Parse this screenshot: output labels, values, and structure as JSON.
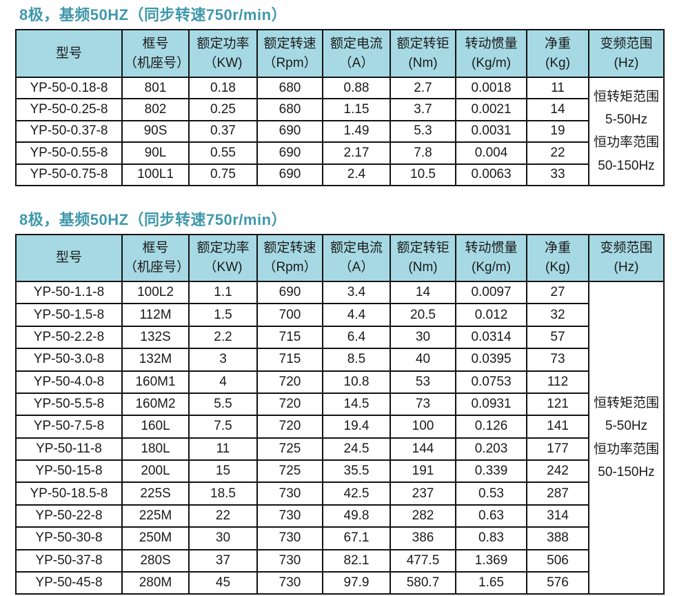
{
  "colors": {
    "title_text": "#3f98ab",
    "header_bg": "#a6d9e3",
    "border": "#111111",
    "cell_text": "#1a1a1a"
  },
  "tables": [
    {
      "title": "8极，基频50HZ（同步转速750r/min）",
      "header": [
        {
          "line1": "型号",
          "line2": ""
        },
        {
          "line1": "框号",
          "line2": "（机座号）"
        },
        {
          "line1": "额定功率",
          "line2": "（KW)"
        },
        {
          "line1": "额定转速",
          "line2": "（Rpm）"
        },
        {
          "line1": "额定电流",
          "line2": "（A）"
        },
        {
          "line1": "额定转钜",
          "line2": "(Nm)"
        },
        {
          "line1": "转动惯量",
          "line2": "(Kg/m)"
        },
        {
          "line1": "净重",
          "line2": "(Kg)"
        },
        {
          "line1": "变频范围",
          "line2": "(Hz)"
        }
      ],
      "frequency_range_lines": [
        "恒转矩范围",
        "5-50Hz",
        "恒功率范围",
        "50-150Hz"
      ],
      "rows": [
        [
          "YP-50-0.18-8",
          "801",
          "0.18",
          "680",
          "0.88",
          "2.7",
          "0.0018",
          "11"
        ],
        [
          "YP-50-0.25-8",
          "802",
          "0.25",
          "680",
          "1.15",
          "3.7",
          "0.0021",
          "14"
        ],
        [
          "YP-50-0.37-8",
          "90S",
          "0.37",
          "690",
          "1.49",
          "5.3",
          "0.0031",
          "19"
        ],
        [
          "YP-50-0.55-8",
          "90L",
          "0.55",
          "690",
          "2.17",
          "7.8",
          "0.004",
          "22"
        ],
        [
          "YP-50-0.75-8",
          "100L1",
          "0.75",
          "690",
          "2.4",
          "10.5",
          "0.0063",
          "33"
        ]
      ]
    },
    {
      "title": "8极，基频50HZ（同步转速750r/min）",
      "header": [
        {
          "line1": "型号",
          "line2": ""
        },
        {
          "line1": "框号",
          "line2": "（机座号）"
        },
        {
          "line1": "额定功率",
          "line2": "（KW)"
        },
        {
          "line1": "额定转速",
          "line2": "（Rpm）"
        },
        {
          "line1": "额定电流",
          "line2": "（A）"
        },
        {
          "line1": "额定转钜",
          "line2": "(Nm)"
        },
        {
          "line1": "转动惯量",
          "line2": "(Kg/m)"
        },
        {
          "line1": "净重",
          "line2": "(Kg)"
        },
        {
          "line1": "变频范围",
          "line2": "(Hz)"
        }
      ],
      "frequency_range_lines": [
        "恒转矩范围",
        "5-50Hz",
        "恒功率范围",
        "50-150Hz"
      ],
      "rows": [
        [
          "YP-50-1.1-8",
          "100L2",
          "1.1",
          "690",
          "3.4",
          "14",
          "0.0097",
          "27"
        ],
        [
          "YP-50-1.5-8",
          "112M",
          "1.5",
          "700",
          "4.4",
          "20.5",
          "0.012",
          "32"
        ],
        [
          "YP-50-2.2-8",
          "132S",
          "2.2",
          "715",
          "6.4",
          "30",
          "0.0314",
          "57"
        ],
        [
          "YP-50-3.0-8",
          "132M",
          "3",
          "715",
          "8.5",
          "40",
          "0.0395",
          "73"
        ],
        [
          "YP-50-4.0-8",
          "160M1",
          "4",
          "720",
          "10.8",
          "53",
          "0.0753",
          "112"
        ],
        [
          "YP-50-5.5-8",
          "160M2",
          "5.5",
          "720",
          "14.5",
          "73",
          "0.0931",
          "121"
        ],
        [
          "YP-50-7.5-8",
          "160L",
          "7.5",
          "720",
          "19.4",
          "100",
          "0.126",
          "141"
        ],
        [
          "YP-50-11-8",
          "180L",
          "11",
          "725",
          "24.5",
          "144",
          "0.203",
          "177"
        ],
        [
          "YP-50-15-8",
          "200L",
          "15",
          "725",
          "35.5",
          "191",
          "0.339",
          "242"
        ],
        [
          "YP-50-18.5-8",
          "225S",
          "18.5",
          "730",
          "42.5",
          "237",
          "0.53",
          "287"
        ],
        [
          "YP-50-22-8",
          "225M",
          "22",
          "730",
          "49.8",
          "282",
          "0.63",
          "314"
        ],
        [
          "YP-50-30-8",
          "250M",
          "30",
          "730",
          "67.1",
          "386",
          "0.83",
          "388"
        ],
        [
          "YP-50-37-8",
          "280S",
          "37",
          "730",
          "82.1",
          "477.5",
          "1.369",
          "506"
        ],
        [
          "YP-50-45-8",
          "280M",
          "45",
          "730",
          "97.9",
          "580.7",
          "1.65",
          "576"
        ]
      ]
    }
  ]
}
